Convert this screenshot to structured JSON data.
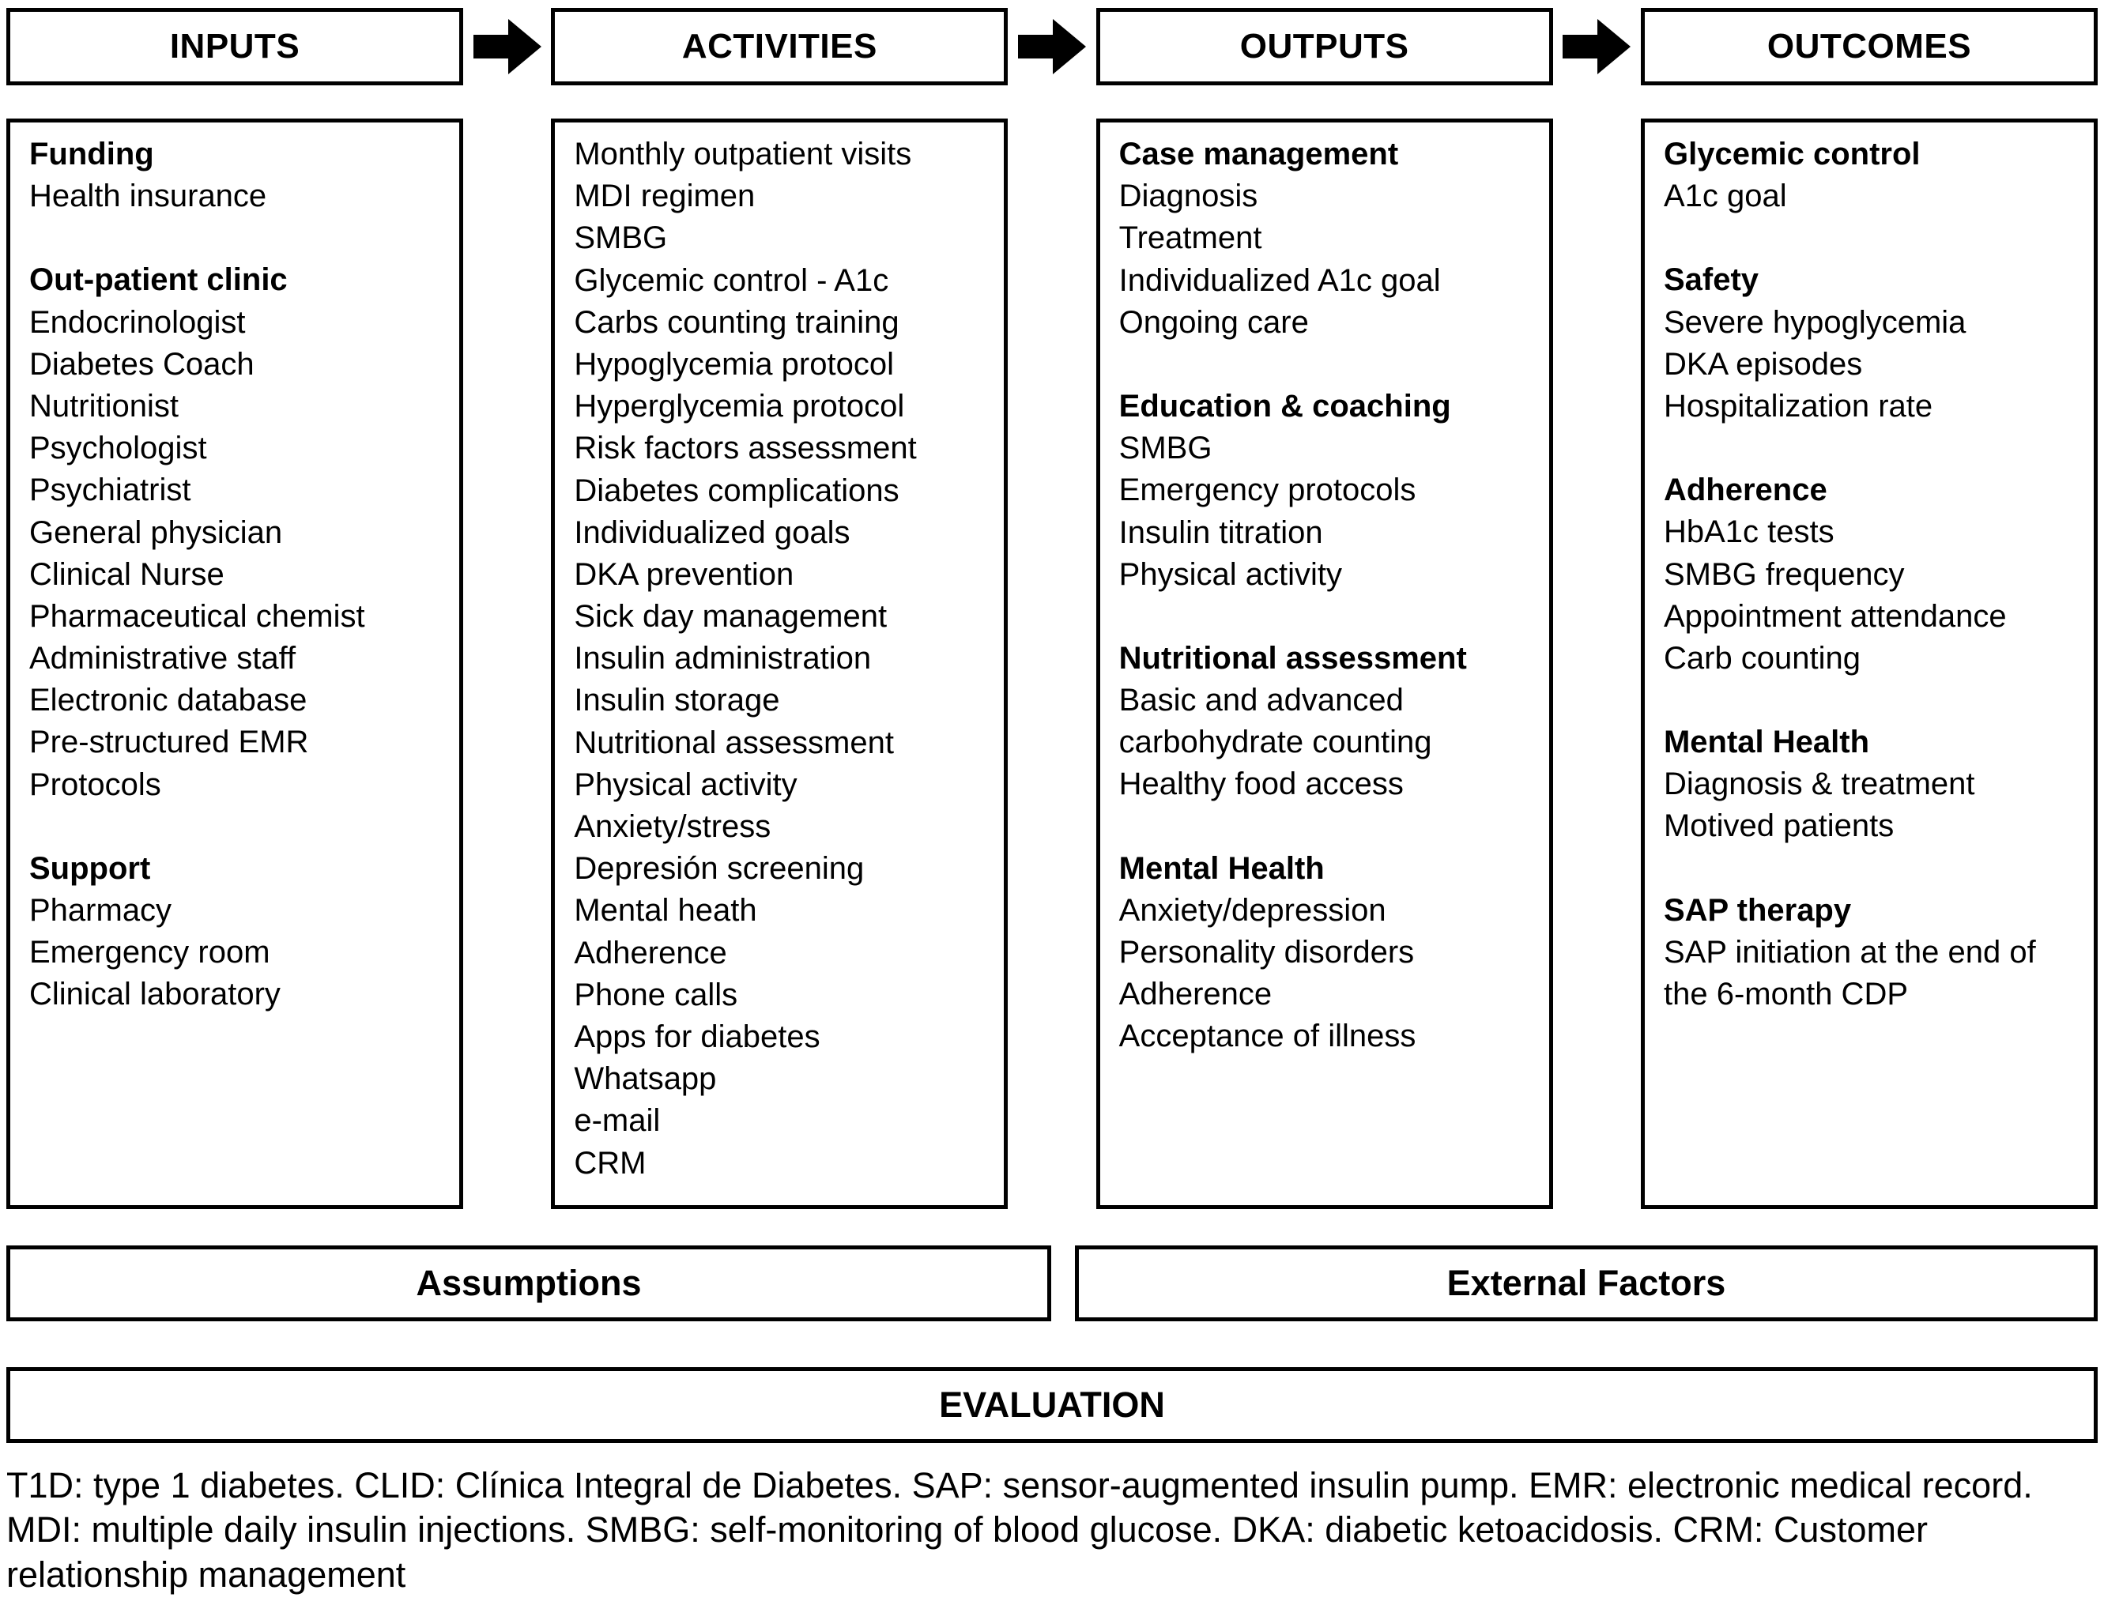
{
  "columns": [
    {
      "header": "INPUTS",
      "groups": [
        {
          "title": "Funding",
          "items": [
            "Health insurance"
          ]
        },
        {
          "title": "Out-patient clinic",
          "items": [
            "Endocrinologist",
            "Diabetes Coach",
            "Nutritionist",
            "Psychologist",
            "Psychiatrist",
            "General physician",
            "Clinical Nurse",
            "Pharmaceutical chemist",
            "Administrative staff",
            "Electronic database",
            "Pre-structured EMR",
            "Protocols"
          ]
        },
        {
          "title": "Support",
          "items": [
            "Pharmacy",
            "Emergency room",
            "Clinical laboratory"
          ]
        }
      ]
    },
    {
      "header": "ACTIVITIES",
      "groups": [
        {
          "title": "",
          "items": [
            "Monthly outpatient visits",
            "MDI regimen",
            "SMBG",
            "Glycemic control - A1c",
            "Carbs counting training",
            "Hypoglycemia protocol",
            "Hyperglycemia protocol",
            "Risk factors assessment",
            "Diabetes complications",
            "Individualized goals",
            "DKA prevention",
            "Sick day management",
            "Insulin administration",
            "Insulin storage",
            "Nutritional assessment",
            "Physical activity",
            "Anxiety/stress",
            "Depresión screening",
            "Mental heath",
            "Adherence",
            "Phone calls",
            "Apps for diabetes",
            "Whatsapp",
            "e-mail",
            "CRM"
          ]
        }
      ]
    },
    {
      "header": "OUTPUTS",
      "groups": [
        {
          "title": "Case management",
          "items": [
            "Diagnosis",
            "Treatment",
            "Individualized A1c goal",
            "Ongoing care"
          ]
        },
        {
          "title": "Education & coaching",
          "items": [
            "SMBG",
            "Emergency protocols",
            "Insulin titration",
            "Physical activity"
          ]
        },
        {
          "title": "Nutritional assessment",
          "items": [
            "Basic and advanced carbohydrate counting",
            "Healthy food access"
          ]
        },
        {
          "title": "Mental Health",
          "items": [
            "Anxiety/depression",
            "Personality disorders",
            "Adherence",
            "Acceptance of illness"
          ]
        }
      ]
    },
    {
      "header": "OUTCOMES",
      "groups": [
        {
          "title": "Glycemic control",
          "items": [
            "A1c goal"
          ]
        },
        {
          "title": "Safety",
          "items": [
            "Severe hypoglycemia",
            "DKA episodes",
            "Hospitalization rate"
          ]
        },
        {
          "title": "Adherence",
          "items": [
            "HbA1c tests",
            "SMBG frequency",
            "Appointment attendance",
            "Carb counting"
          ]
        },
        {
          "title": "Mental Health",
          "items": [
            "Diagnosis & treatment",
            "Motived patients"
          ]
        },
        {
          "title": "SAP therapy",
          "items": [
            "SAP initiation at the end of the 6-month CDP"
          ]
        }
      ]
    }
  ],
  "arrows": {
    "color": "#000000",
    "direction": "right"
  },
  "bottom": {
    "assumptions": "Assumptions",
    "external_factors": "External Factors",
    "evaluation": "EVALUATION"
  },
  "footnote": "T1D: type 1 diabetes. CLID: Clínica Integral de Diabetes. SAP: sensor-augmented insulin pump. EMR: electronic medical record. MDI: multiple daily insulin injections. SMBG: self-monitoring of blood glucose. DKA: diabetic ketoacidosis. CRM: Customer relationship management"
}
